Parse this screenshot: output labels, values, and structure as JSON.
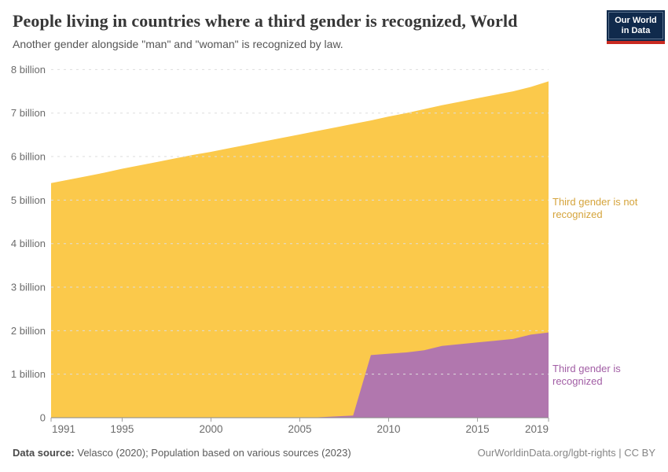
{
  "header": {
    "title": "People living in countries where a third gender is recognized, World",
    "subtitle": "Another gender alongside \"man\" and \"woman\" is recognized by law.",
    "logo": {
      "line1": "Our World",
      "line2": "in Data",
      "bg_color": "#102A4C",
      "bar_color": "#C92A21"
    }
  },
  "chart_data": {
    "type": "area",
    "stacked": true,
    "title": "People living in countries where a third gender is recognized, World",
    "xlabel": "",
    "ylabel": "",
    "xlim": [
      1991,
      2019
    ],
    "ylim": [
      0,
      8
    ],
    "grid": true,
    "grid_color": "#dddddd",
    "axis_color": "#8a8a8a",
    "tick_color": "#9e9e9e",
    "tick_label_color": "#6b6b6b",
    "x": [
      1991,
      1992,
      1993,
      1994,
      1995,
      1996,
      1997,
      1998,
      1999,
      2000,
      2001,
      2002,
      2003,
      2004,
      2005,
      2006,
      2007,
      2008,
      2009,
      2010,
      2011,
      2012,
      2013,
      2014,
      2015,
      2016,
      2017,
      2018,
      2019
    ],
    "series": [
      {
        "key": "recognized",
        "name": "Third gender is recognized",
        "color": "#B177AE",
        "unit": "billion people",
        "values": [
          0,
          0,
          0,
          0,
          0,
          0,
          0,
          0,
          0,
          0,
          0,
          0,
          0,
          0,
          0,
          0.01,
          0.03,
          0.05,
          1.44,
          1.47,
          1.5,
          1.55,
          1.65,
          1.69,
          1.73,
          1.77,
          1.81,
          1.91,
          1.96
        ]
      },
      {
        "key": "not_recognized",
        "name": "Third gender is not recognized",
        "color": "#FBC94B",
        "unit": "billion people",
        "values": [
          5.39,
          5.47,
          5.55,
          5.63,
          5.72,
          5.8,
          5.88,
          5.96,
          6.04,
          6.11,
          6.19,
          6.27,
          6.35,
          6.43,
          6.51,
          6.58,
          6.64,
          6.7,
          5.39,
          5.45,
          5.5,
          5.54,
          5.53,
          5.57,
          5.61,
          5.65,
          5.69,
          5.69,
          5.77
        ]
      }
    ],
    "y_ticks": [
      {
        "value": 0,
        "label": "0"
      },
      {
        "value": 1,
        "label": "1 billion"
      },
      {
        "value": 2,
        "label": "2 billion"
      },
      {
        "value": 3,
        "label": "3 billion"
      },
      {
        "value": 4,
        "label": "4 billion"
      },
      {
        "value": 5,
        "label": "5 billion"
      },
      {
        "value": 6,
        "label": "6 billion"
      },
      {
        "value": 7,
        "label": "7 billion"
      },
      {
        "value": 8,
        "label": "8 billion"
      }
    ],
    "x_ticks": [
      1991,
      1995,
      2000,
      2005,
      2010,
      2015,
      2019
    ],
    "annotations": [
      {
        "text": "Third gender is not recognized",
        "color": "#D5A43C",
        "series": "not_recognized"
      },
      {
        "text": "Third gender is recognized",
        "color": "#A25EA5",
        "series": "recognized"
      }
    ],
    "legend_position": "right-annotations"
  },
  "footer": {
    "source_label": "Data source:",
    "source_text": " Velasco (2020); Population based on various sources (2023)",
    "credit": "OurWorldinData.org/lgbt-rights | CC BY"
  }
}
